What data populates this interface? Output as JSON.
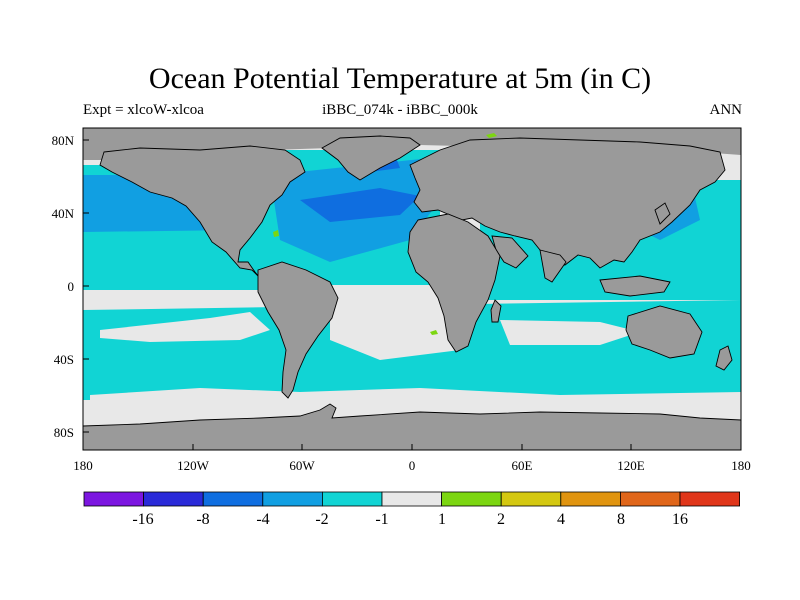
{
  "title": "Ocean Potential Temperature at 5m (in C)",
  "left_subtitle": "Expt = xlcoW-xlcoa",
  "center_subtitle": "iBBC_074k - iBBC_000k",
  "right_subtitle": "ANN",
  "lat_labels": [
    "80N",
    "40N",
    "0",
    "40S",
    "80S"
  ],
  "lon_labels": [
    "180",
    "120W",
    "60W",
    "0",
    "60E",
    "120E",
    "180"
  ],
  "colorbar": {
    "colors": [
      "#7c16e0",
      "#2a2ad8",
      "#0f6ee0",
      "#119fe2",
      "#11d4d4",
      "#e8e8e8",
      "#7cd611",
      "#d4c811",
      "#e0940f",
      "#e0661a",
      "#e0361a"
    ],
    "labels": [
      "-16",
      "-8",
      "-4",
      "-2",
      "-1",
      "1",
      "2",
      "4",
      "8",
      "16"
    ]
  },
  "colors": {
    "land": "#9a9a9a",
    "ocean_neutral": "#e8e8e8"
  }
}
